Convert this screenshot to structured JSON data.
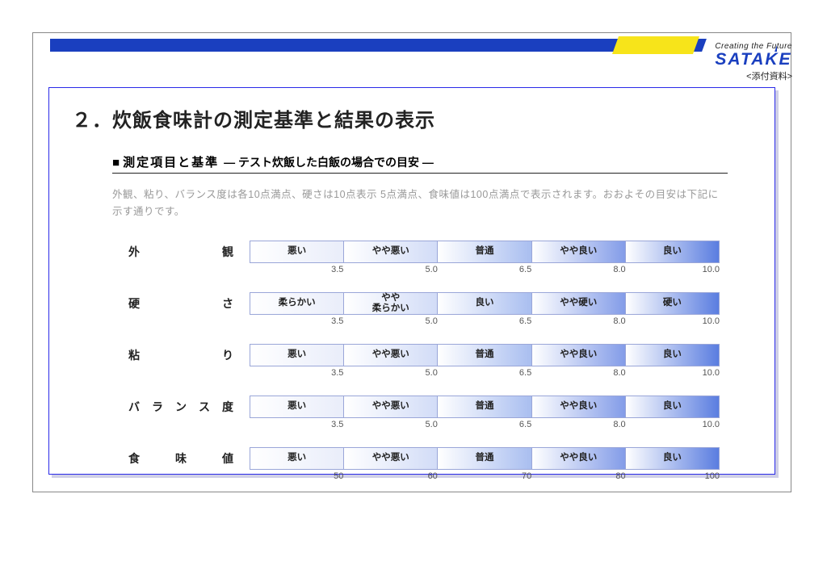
{
  "brand": {
    "tagline": "Creating the Future",
    "name": "SATAKE",
    "attachment": "<添付資料>"
  },
  "main_title": "２．炊飯食味計の測定基準と結果の表示",
  "sub_title": {
    "bullet": "■",
    "main": "測定項目と基準",
    "note": " ― テスト炊飯した白飯の場合での目安 ―"
  },
  "description": "外観、粘り、バランス度は各10点満点、硬さは10点表示 5点満点、食味値は100点満点で表示されます。おおよその目安は下記に示す通りです。",
  "metrics": [
    {
      "label": "外　　　　　観",
      "cells": [
        "悪い",
        "やや悪い",
        "普通",
        "やや良い",
        "良い"
      ],
      "ticks": [
        "3.5",
        "5.0",
        "6.5",
        "8.0",
        "10.0"
      ]
    },
    {
      "label": "硬　　　　　さ",
      "cells": [
        "柔らかい",
        "やや\n柔らかい",
        "良い",
        "やや硬い",
        "硬い"
      ],
      "ticks": [
        "3.5",
        "5.0",
        "6.5",
        "8.0",
        "10.0"
      ]
    },
    {
      "label": "粘　　　　　り",
      "cells": [
        "悪い",
        "やや悪い",
        "普通",
        "やや良い",
        "良い"
      ],
      "ticks": [
        "3.5",
        "5.0",
        "6.5",
        "8.0",
        "10.0"
      ]
    },
    {
      "label": "バ　ラ　ン　ス　度",
      "cells": [
        "悪い",
        "やや悪い",
        "普通",
        "やや良い",
        "良い"
      ],
      "ticks": [
        "3.5",
        "5.0",
        "6.5",
        "8.0",
        "10.0"
      ]
    },
    {
      "label": "食　　味　　値",
      "cells": [
        "悪い",
        "やや悪い",
        "普通",
        "やや良い",
        "良い"
      ],
      "ticks": [
        "50",
        "60",
        "70",
        "80",
        "100"
      ]
    }
  ],
  "colors": {
    "accent_blue": "#1a3fbf",
    "accent_yellow": "#f7e41a",
    "cell_gradients": [
      "#e9edfa",
      "#d2dcf7",
      "#a9bef0",
      "#839ce8",
      "#5a7de0"
    ]
  }
}
